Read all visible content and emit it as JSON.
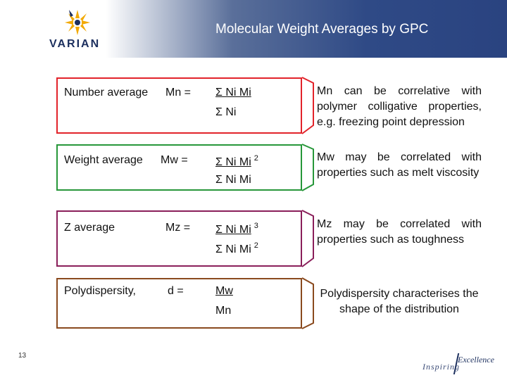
{
  "header": {
    "title": "Molecular Weight Averages by GPC",
    "logo_text": "VARIAN",
    "logo_icon": "starburst-logo-icon"
  },
  "rows": [
    {
      "label": "Number average",
      "symbol": "Mn =",
      "numerator": "Σ Ni Mi",
      "numerator_exp": "",
      "denominator": "Σ Ni",
      "denominator_exp": "",
      "description": "Mn can be correlative with polymer colligative properties, e.g. freezing point depression",
      "color": "#e2232a"
    },
    {
      "label": "Weight average",
      "symbol": "Mw =",
      "numerator": "Σ Ni Mi",
      "numerator_exp": "2",
      "denominator": "Σ Ni Mi",
      "denominator_exp": "",
      "description": "Mw may be correlated with properties such as melt viscosity",
      "color": "#27973a"
    },
    {
      "label": "Z average",
      "symbol": "Mz =",
      "numerator": "Σ Ni Mi",
      "numerator_exp": "3",
      "denominator": "Σ Ni Mi",
      "denominator_exp": "2",
      "description": "Mz may be correlated with properties such as toughness",
      "color": "#8a1f5a"
    },
    {
      "label": "Polydispersity,",
      "symbol": "d =",
      "numerator": "Mw",
      "numerator_exp": "",
      "denominator": "Mn",
      "denominator_exp": "",
      "description": "Polydispersity characterises the shape of the distribution",
      "color": "#8a4a1e"
    }
  ],
  "footer": {
    "page_number": "13",
    "tagline_left": "Inspiring",
    "tagline_right": "Excellence"
  }
}
